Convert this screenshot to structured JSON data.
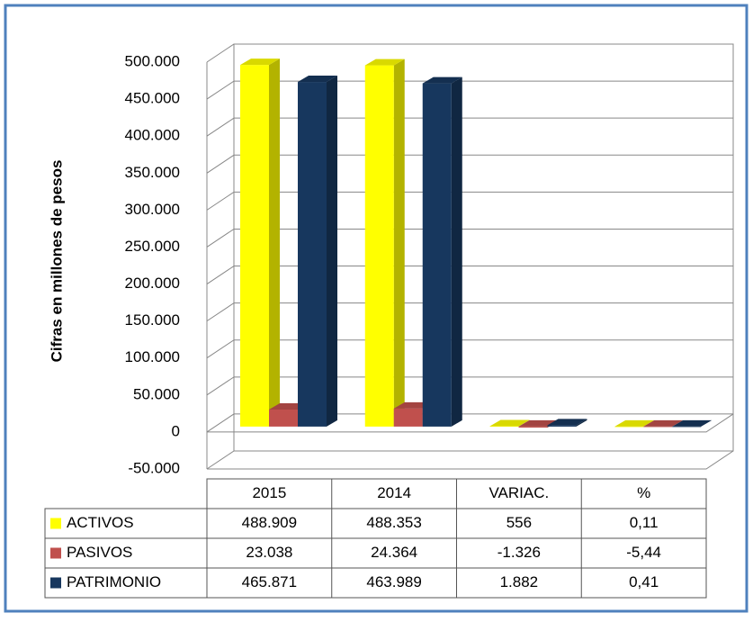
{
  "chart_data": {
    "type": "bar3d",
    "y_axis_label": "Cifras en millones de pesos",
    "categories": [
      "2015",
      "2014",
      "VARIAC.",
      "%"
    ],
    "series": [
      {
        "name": "ACTIVOS",
        "color": "#ffff00",
        "values": [
          488909,
          488353,
          556,
          0.11
        ],
        "value_labels": [
          "488.909",
          "488.353",
          "556",
          "0,11"
        ]
      },
      {
        "name": "PASIVOS",
        "color": "#c0504d",
        "values": [
          23038,
          24364,
          -1326,
          -5.44
        ],
        "value_labels": [
          "23.038",
          "24.364",
          "-1.326",
          "-5,44"
        ]
      },
      {
        "name": "PATRIMONIO",
        "color": "#17375e",
        "values": [
          465871,
          463989,
          1882,
          0.41
        ],
        "value_labels": [
          "465.871",
          "463.989",
          "1.882",
          "0,41"
        ]
      }
    ],
    "ylim": [
      -50000,
      500000
    ],
    "yticks": [
      {
        "value": -50000,
        "label": "-50.000"
      },
      0,
      {
        "value": 50000,
        "label": "50.000"
      },
      {
        "value": 100000,
        "label": "100.000"
      },
      {
        "value": 150000,
        "label": "150.000"
      },
      {
        "value": 200000,
        "label": "200.000"
      },
      {
        "value": 250000,
        "label": "250.000"
      },
      {
        "value": 300000,
        "label": "300.000"
      },
      {
        "value": 350000,
        "label": "350.000"
      },
      {
        "value": 400000,
        "label": "400.000"
      },
      {
        "value": 450000,
        "label": "450.000"
      },
      {
        "value": 500000,
        "label": "500.000"
      }
    ],
    "grid": true
  }
}
